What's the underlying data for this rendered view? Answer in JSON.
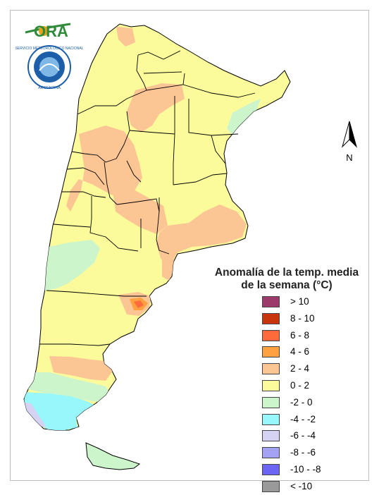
{
  "logo": {
    "text": "ORA",
    "dot_color": "#e8a21a",
    "swoosh_color": "#2f8a3a"
  },
  "emblem": {
    "ring_text": "SERVICIO METEOROLOGICO NACIONAL",
    "bottom_text": "ARGENTINA",
    "ring_color": "#1c5fa8"
  },
  "north_arrow": {
    "label": "N"
  },
  "legend": {
    "title_line1": "Anomalía de la temp. media",
    "title_line2": "de la semana (°C)",
    "items": [
      {
        "label": "> 10",
        "color": "#9c3a6a"
      },
      {
        "label": "8 - 10",
        "color": "#c8350d"
      },
      {
        "label": "6 - 8",
        "color": "#ff6a3a"
      },
      {
        "label": "4 - 6",
        "color": "#ffa140"
      },
      {
        "label": "2 - 4",
        "color": "#fcc594"
      },
      {
        "label": "0 - 2",
        "color": "#fbfb9c"
      },
      {
        "label": "-2 - 0",
        "color": "#ccf5cc"
      },
      {
        "label": "-4 - -2",
        "color": "#97f7fa"
      },
      {
        "label": "-6 - -4",
        "color": "#d6d2f4"
      },
      {
        "label": "-8 - -6",
        "color": "#a4a2f4"
      },
      {
        "label": "-10 - -8",
        "color": "#6c64f2"
      },
      {
        "label": "< -10",
        "color": "#9a9a9a"
      }
    ]
  },
  "map_colors": {
    "base": "#fbfb9c",
    "warm": "#fcc594",
    "hot": "#ffa140",
    "hotter": "#ff6a3a",
    "cool": "#ccf5cc",
    "cold": "#97f7fa",
    "colder": "#d6d2f4",
    "border": "#000000"
  }
}
